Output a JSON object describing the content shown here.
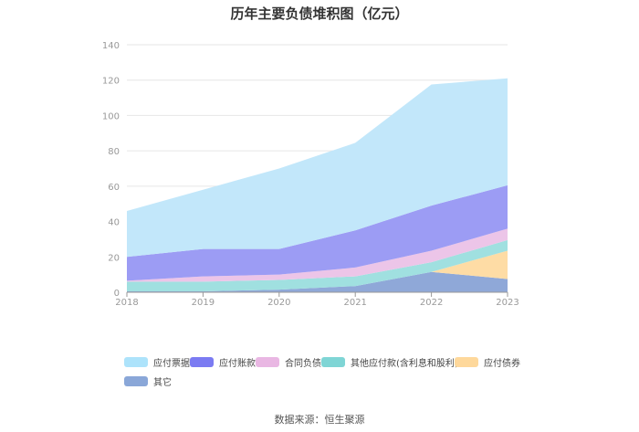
{
  "chart_data": {
    "type": "area",
    "stacked": true,
    "title": "历年主要负债堆积图（亿元）",
    "categories": [
      "2018",
      "2019",
      "2020",
      "2021",
      "2022",
      "2023"
    ],
    "ylim": [
      0,
      140
    ],
    "yticks": [
      0,
      20,
      40,
      60,
      80,
      100,
      120,
      140
    ],
    "grid": true,
    "legend_position": "bottom",
    "series": [
      {
        "name": "其它",
        "color": "#8fa8d8",
        "values": [
          0.5,
          0.5,
          1.5,
          3.5,
          11.5,
          7.5
        ]
      },
      {
        "name": "应付债券",
        "color": "#fedca5",
        "values": [
          0,
          0,
          0,
          0,
          0,
          16
        ]
      },
      {
        "name": "其他应付款(含利息和股利)",
        "color": "#a0e0e0",
        "values": [
          5.5,
          5.5,
          5.5,
          5.5,
          5.5,
          6
        ]
      },
      {
        "name": "合同负债",
        "color": "#ecc5e8",
        "values": [
          0.5,
          3,
          3,
          5,
          6.5,
          6.5
        ]
      },
      {
        "name": "应付账款",
        "color": "#9c9cf4",
        "values": [
          13.5,
          15.5,
          14.5,
          21,
          25.5,
          24.5
        ]
      },
      {
        "name": "应付票据",
        "color": "#c2e7fa",
        "values": [
          26,
          33.5,
          45.5,
          49.5,
          68.5,
          60.5
        ]
      }
    ]
  },
  "legend": [
    {
      "label": "应付票据",
      "color": "#ade3fb"
    },
    {
      "label": "应付账款",
      "color": "#7b7bf2"
    },
    {
      "label": "合同负债",
      "color": "#e9b7e3"
    },
    {
      "label": "其他应付款(含利息和股利)",
      "color": "#7fd5d5"
    },
    {
      "label": "应付债券",
      "color": "#fed89b"
    },
    {
      "label": "其它",
      "color": "#8aa7d8"
    }
  ],
  "source": "数据来源：恒生聚源"
}
